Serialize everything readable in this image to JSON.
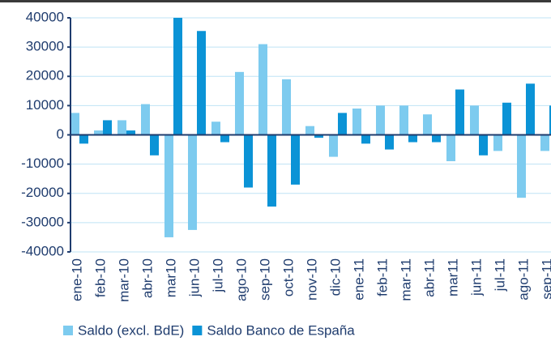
{
  "chart_data": {
    "type": "bar",
    "categories": [
      "ene-10",
      "feb-10",
      "mar-10",
      "abr-10",
      "mar10",
      "jun-10",
      "jul-10",
      "ago-10",
      "sep-10",
      "oct-10",
      "nov-10",
      "dic-10",
      "ene-11",
      "feb-11",
      "mar-11",
      "abr-11",
      "mar11",
      "jun-11",
      "jul-11",
      "ago-11",
      "sep-11"
    ],
    "series": [
      {
        "name": "Saldo (excl. BdE)",
        "color": "#7dcbef",
        "values": [
          7500,
          1500,
          5000,
          10500,
          -35000,
          -32500,
          4500,
          21500,
          31000,
          19000,
          3000,
          -7500,
          9000,
          10000,
          10000,
          7000,
          -9000,
          10000,
          -5500,
          -21500,
          -5500
        ]
      },
      {
        "name": "Saldo Banco de España",
        "color": "#0b93d6",
        "values": [
          -3000,
          5000,
          1500,
          -7000,
          40000,
          35500,
          -2500,
          -18000,
          -24500,
          -17000,
          -1000,
          7500,
          -3000,
          -5000,
          -2500,
          -2500,
          15500,
          -7000,
          11000,
          17500,
          10000
        ]
      }
    ],
    "ylim": [
      -40000,
      40000
    ],
    "yticks": [
      -40000,
      -30000,
      -20000,
      -10000,
      0,
      10000,
      20000,
      30000,
      40000
    ],
    "grid": true,
    "legend": "bottom"
  }
}
